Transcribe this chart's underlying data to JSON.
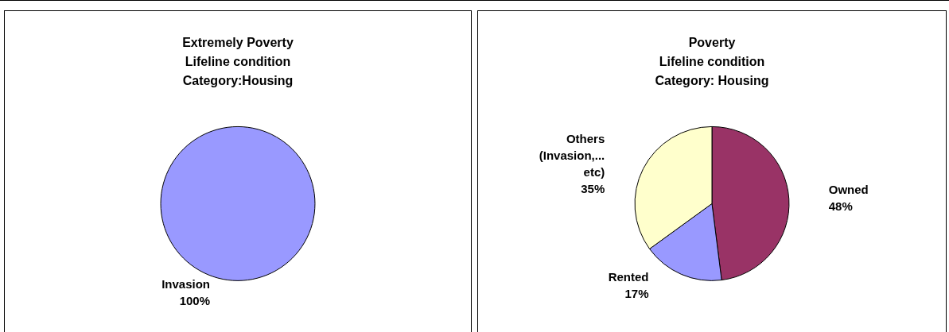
{
  "chart_data": [
    {
      "type": "pie",
      "title": "Extremely Poverty\nLifeline condition\nCategory:Housing",
      "categories": [
        "Invasion"
      ],
      "values": [
        100
      ],
      "colors": [
        "#9999ff"
      ],
      "value_labels": [
        "100%"
      ]
    },
    {
      "type": "pie",
      "title": "Poverty\nLifeline condition\nCategory: Housing",
      "categories": [
        "Owned",
        "Rented",
        "Others\n(Invasion,...\netc)"
      ],
      "values": [
        48,
        17,
        35
      ],
      "colors": [
        "#993366",
        "#9999ff",
        "#ffffcc"
      ],
      "value_labels": [
        "48%",
        "17%",
        "35%"
      ]
    }
  ]
}
